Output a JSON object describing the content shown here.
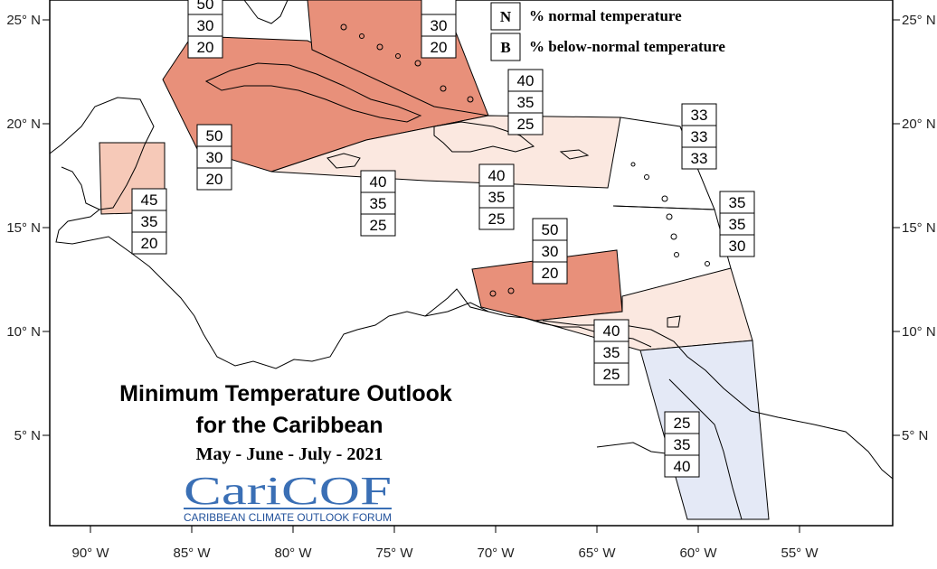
{
  "title_line1": "Minimum Temperature Outlook",
  "title_line2": "for the Caribbean",
  "period": "May - June - July - 2021",
  "logo": {
    "name": "CariCOF",
    "subtitle": "CARIBBEAN CLIMATE OUTLOOK FORUM"
  },
  "legend": [
    {
      "key": "N",
      "text": "% normal temperature"
    },
    {
      "key": "B",
      "text": "% below-normal temperature"
    }
  ],
  "lon_labels": [
    "90° W",
    "85° W",
    "80° W",
    "75° W",
    "70° W",
    "65° W",
    "60° W",
    "55° W"
  ],
  "lat_labels": [
    "25° N",
    "20° N",
    "15° N",
    "10° N",
    "5° N"
  ],
  "colors": {
    "above_50": "#e8907a",
    "above_45": "#f6c9b8",
    "above_40": "#fbe8e0",
    "below_40": "#e4e9f6",
    "border": "#000000"
  },
  "probability_stacks": [
    {
      "id": "bahamas-west",
      "values": [
        "50",
        "30",
        "20"
      ]
    },
    {
      "id": "bahamas-east",
      "values": [
        "",
        "30",
        "20"
      ]
    },
    {
      "id": "hispaniola-north",
      "values": [
        "40",
        "35",
        "25"
      ]
    },
    {
      "id": "leeward-north",
      "values": [
        "33",
        "33",
        "33"
      ]
    },
    {
      "id": "cuba",
      "values": [
        "50",
        "30",
        "20"
      ]
    },
    {
      "id": "belize",
      "values": [
        "45",
        "35",
        "20"
      ]
    },
    {
      "id": "jamaica",
      "values": [
        "40",
        "35",
        "25"
      ]
    },
    {
      "id": "hispaniola-south",
      "values": [
        "40",
        "35",
        "25"
      ]
    },
    {
      "id": "windward",
      "values": [
        "35",
        "35",
        "30"
      ]
    },
    {
      "id": "abc-islands",
      "values": [
        "50",
        "30",
        "20"
      ]
    },
    {
      "id": "trinidad",
      "values": [
        "40",
        "35",
        "25"
      ]
    },
    {
      "id": "guianas",
      "values": [
        "25",
        "35",
        "40"
      ]
    }
  ]
}
